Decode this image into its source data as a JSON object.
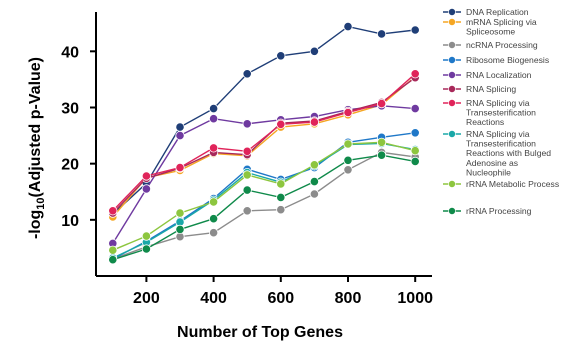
{
  "chart_data": {
    "type": "line",
    "xlabel": "Number of Top Genes",
    "ylabel_main": "-log",
    "ylabel_sub": "10",
    "ylabel_rest": "(Adjusted p-Value)",
    "xlim": [
      50,
      1050
    ],
    "ylim": [
      0,
      47
    ],
    "xticks": [
      200,
      400,
      600,
      800,
      1000
    ],
    "xtick_labels": [
      "200",
      "400",
      "600",
      "800",
      "1000"
    ],
    "yticks": [
      10,
      20,
      30,
      40
    ],
    "ytick_labels": [
      "10",
      "20",
      "30",
      "40"
    ],
    "x": [
      100,
      200,
      300,
      400,
      500,
      600,
      700,
      800,
      900,
      1000
    ],
    "legend_position": "right",
    "series": [
      {
        "name": "DNA Replication",
        "color": "#1f3e77",
        "values": [
          11.0,
          16.5,
          26.5,
          29.8,
          36.0,
          39.2,
          40.0,
          44.4,
          43.1,
          43.8
        ]
      },
      {
        "name": "mRNA Splicing via Spliceosome",
        "color": "#f5a623",
        "values": [
          10.5,
          17.5,
          18.8,
          21.8,
          21.4,
          26.5,
          27.1,
          28.7,
          30.5,
          35.5
        ]
      },
      {
        "name": "ncRNA Processing",
        "color": "#8c8c8c",
        "values": [
          3.0,
          5.2,
          7.0,
          7.7,
          11.6,
          11.8,
          14.6,
          18.9,
          22.0,
          21.2
        ]
      },
      {
        "name": "Ribosome Biogenesis",
        "color": "#1f78c8",
        "values": [
          3.0,
          6.2,
          9.8,
          13.8,
          19.0,
          17.2,
          19.3,
          23.8,
          24.7,
          25.5
        ]
      },
      {
        "name": "RNA Localization",
        "color": "#6f3aa0",
        "values": [
          5.8,
          15.5,
          25.0,
          28.0,
          27.1,
          27.8,
          28.4,
          29.6,
          30.3,
          29.8
        ]
      },
      {
        "name": "RNA Splicing",
        "color": "#a8285a",
        "values": [
          11.2,
          17.4,
          19.2,
          22.0,
          21.6,
          27.2,
          27.6,
          29.3,
          30.9,
          35.3
        ]
      },
      {
        "name": "RNA Splicing via Transesterification Reactions",
        "color": "#e0245a",
        "values": [
          11.6,
          17.8,
          19.3,
          22.8,
          22.2,
          27.0,
          27.4,
          29.1,
          30.7,
          36.0
        ]
      },
      {
        "name": "RNA Splicing via Transesterification Reactions with Bulged Adenosine as Nucleophile",
        "color": "#1aa8a8",
        "values": [
          3.2,
          6.0,
          9.6,
          13.5,
          18.4,
          16.7,
          19.6,
          23.4,
          23.6,
          22.5
        ]
      },
      {
        "name": "rRNA Metabolic Process",
        "color": "#8dc63f",
        "values": [
          4.6,
          7.1,
          11.2,
          13.2,
          18.0,
          16.4,
          19.8,
          23.5,
          23.8,
          22.3
        ]
      },
      {
        "name": "rRNA Processing",
        "color": "#0f8a4a",
        "values": [
          2.9,
          4.8,
          8.3,
          10.2,
          15.3,
          14.0,
          16.8,
          20.6,
          21.5,
          20.4
        ]
      }
    ]
  }
}
